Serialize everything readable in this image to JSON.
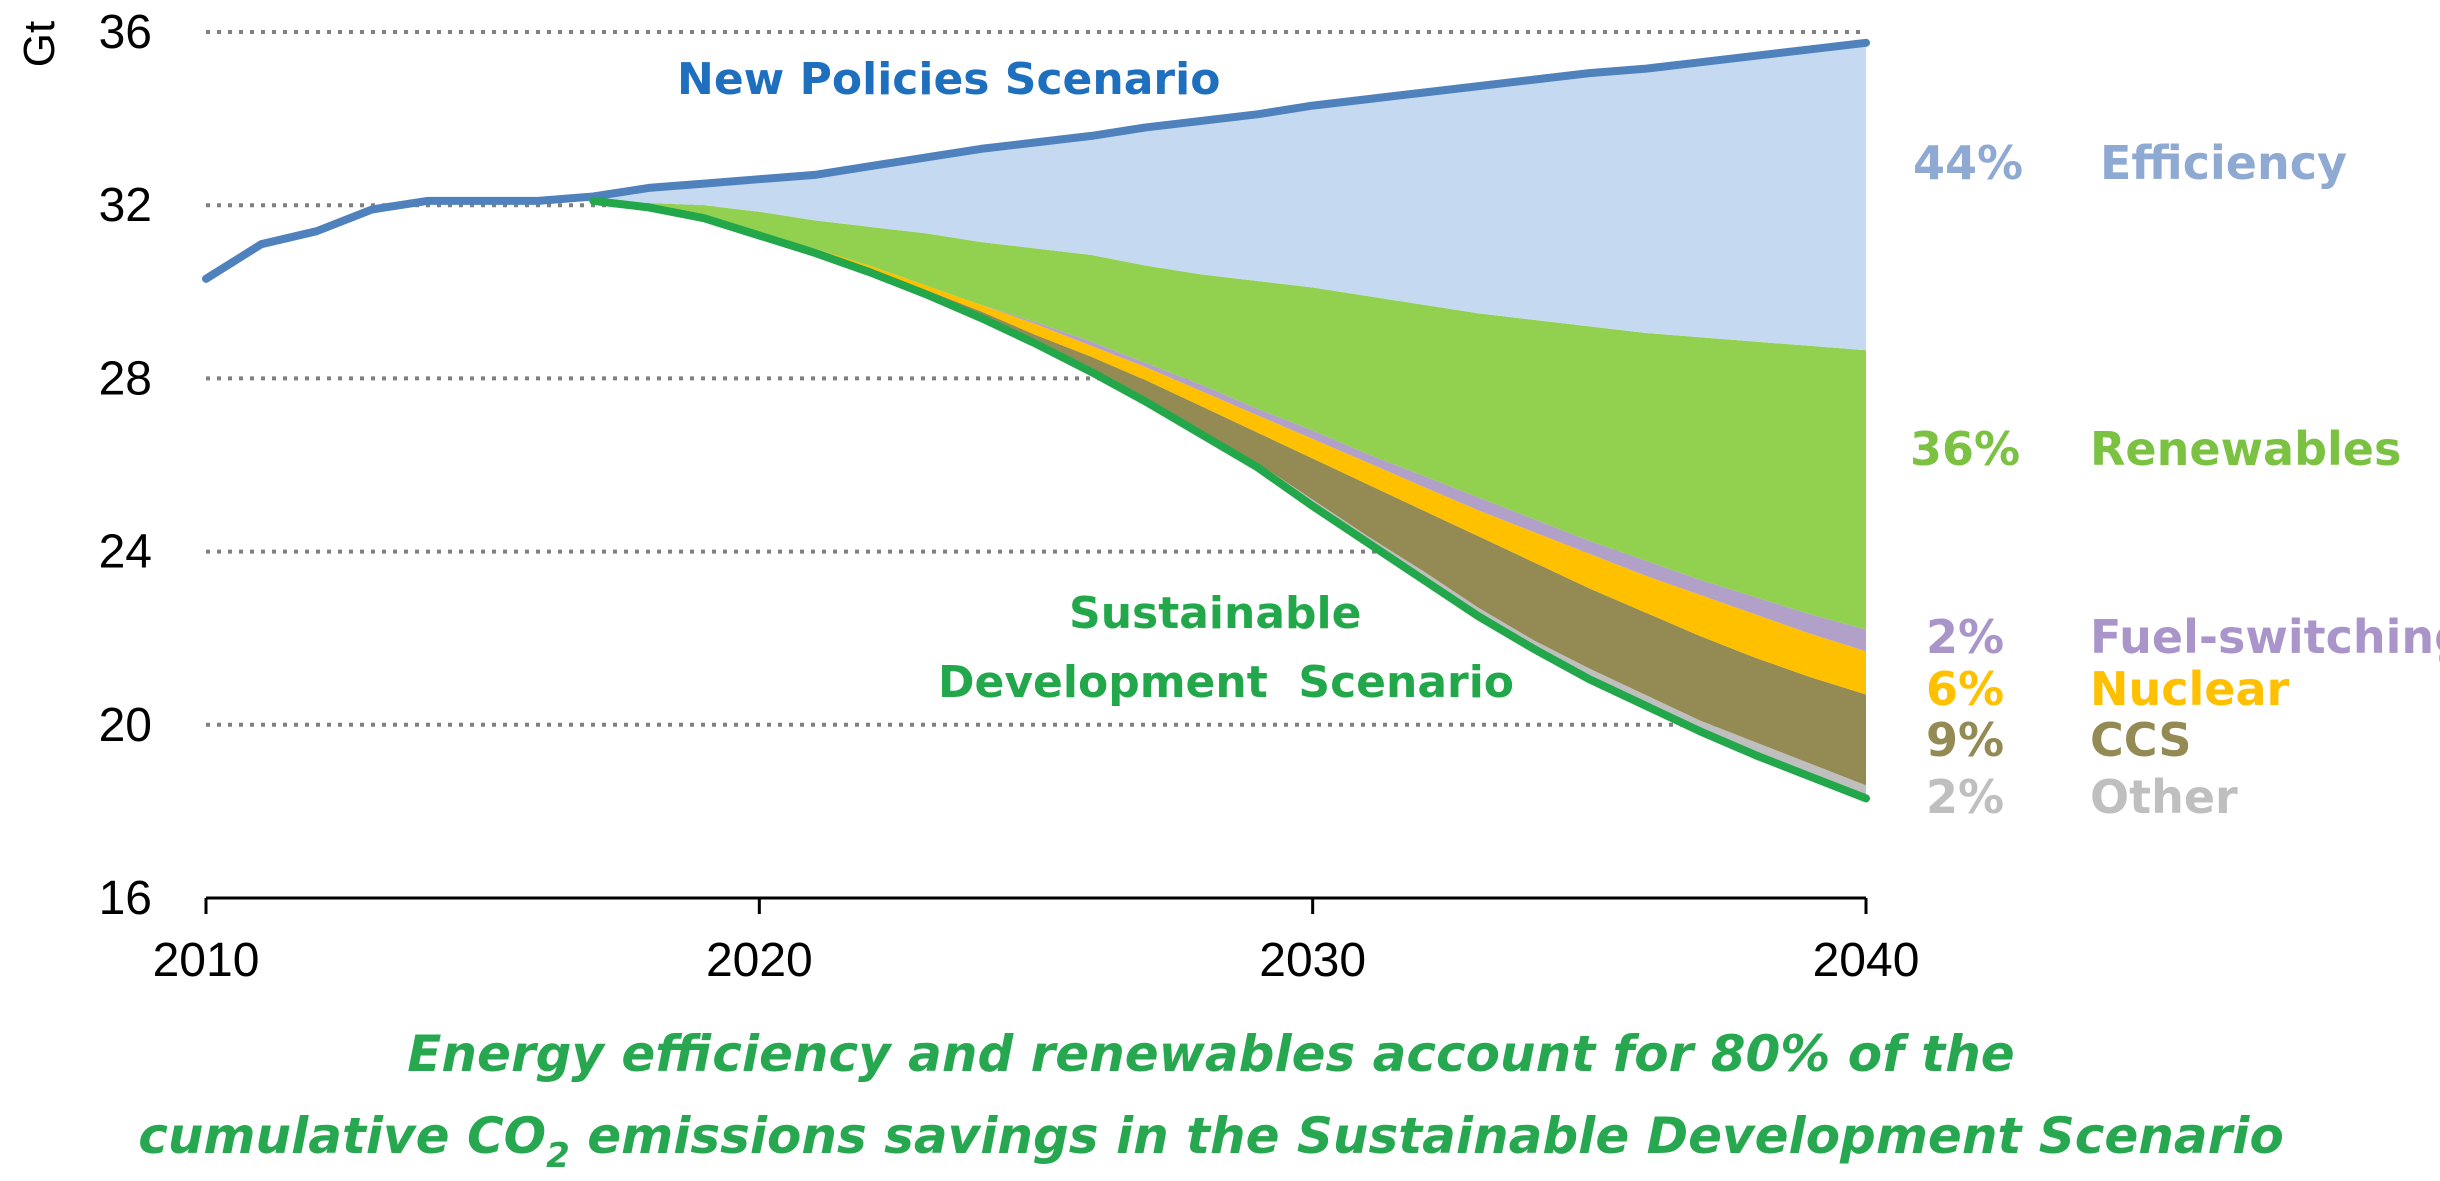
{
  "chart_data": {
    "type": "area",
    "title": "",
    "ylabel": "Gt",
    "xlabel": "",
    "xlim": [
      2010,
      2040
    ],
    "ylim": [
      16,
      36
    ],
    "x_ticks": [
      2010,
      2020,
      2030,
      2040
    ],
    "y_ticks": [
      16,
      20,
      24,
      28,
      32,
      36
    ],
    "gridlines": "horizontal dotted",
    "x": [
      2010,
      2011,
      2012,
      2013,
      2014,
      2015,
      2016,
      2017,
      2018,
      2019,
      2020,
      2021,
      2022,
      2023,
      2024,
      2025,
      2026,
      2027,
      2028,
      2029,
      2030,
      2031,
      2032,
      2033,
      2034,
      2035,
      2036,
      2037,
      2038,
      2039,
      2040
    ],
    "lines": [
      {
        "name": "New Policies Scenario",
        "color": "#4F81BD",
        "values": [
          30.3,
          31.1,
          31.4,
          31.9,
          32.1,
          32.1,
          32.1,
          32.2,
          32.4,
          32.5,
          32.6,
          32.7,
          32.9,
          33.1,
          33.3,
          33.45,
          33.6,
          33.8,
          33.95,
          34.1,
          34.3,
          34.45,
          34.6,
          34.75,
          34.9,
          35.05,
          35.15,
          35.3,
          35.45,
          35.6,
          35.75
        ]
      },
      {
        "name": "Sustainable Development Scenario",
        "color": "#22A84A",
        "values": [
          null,
          null,
          null,
          null,
          null,
          null,
          null,
          32.1,
          31.95,
          31.7,
          31.3,
          30.9,
          30.45,
          29.95,
          29.4,
          28.8,
          28.15,
          27.45,
          26.7,
          25.95,
          25.05,
          24.2,
          23.35,
          22.5,
          21.75,
          21.05,
          20.45,
          19.85,
          19.3,
          18.8,
          18.3
        ]
      }
    ],
    "wedges": [
      {
        "name": "Other",
        "share": "2%",
        "color": "#BFBFBF",
        "top": [
          null,
          null,
          null,
          null,
          null,
          null,
          null,
          32.1,
          31.95,
          31.7,
          31.3,
          30.9,
          30.45,
          29.95,
          29.45,
          28.9,
          28.25,
          27.55,
          26.8,
          26.05,
          25.2,
          24.35,
          23.55,
          22.7,
          21.95,
          21.3,
          20.7,
          20.1,
          19.6,
          19.1,
          18.6
        ]
      },
      {
        "name": "CCS",
        "share": "9%",
        "color": "#948A54",
        "top": [
          null,
          null,
          null,
          null,
          null,
          null,
          null,
          32.1,
          31.95,
          31.7,
          31.35,
          30.95,
          30.5,
          30.05,
          29.55,
          29.0,
          28.5,
          27.95,
          27.35,
          26.75,
          26.15,
          25.55,
          24.95,
          24.35,
          23.75,
          23.15,
          22.6,
          22.05,
          21.55,
          21.1,
          20.7
        ]
      },
      {
        "name": "Nuclear",
        "share": "6%",
        "color": "#FFC000",
        "top": [
          null,
          null,
          null,
          null,
          null,
          null,
          null,
          32.1,
          31.95,
          31.7,
          31.35,
          31.0,
          30.6,
          30.15,
          29.7,
          29.25,
          28.75,
          28.25,
          27.7,
          27.15,
          26.6,
          26.05,
          25.5,
          24.95,
          24.45,
          23.95,
          23.45,
          23.0,
          22.55,
          22.1,
          21.7
        ]
      },
      {
        "name": "Fuel-switching",
        "share": "2%",
        "color": "#B1A0C7",
        "top": [
          null,
          null,
          null,
          null,
          null,
          null,
          null,
          32.1,
          31.95,
          31.7,
          31.35,
          31.0,
          30.6,
          30.15,
          29.7,
          29.3,
          28.85,
          28.35,
          27.85,
          27.3,
          26.8,
          26.25,
          25.75,
          25.25,
          24.75,
          24.25,
          23.8,
          23.35,
          22.95,
          22.55,
          22.2
        ]
      },
      {
        "name": "Renewables",
        "share": "36%",
        "color": "#92D050",
        "top": [
          null,
          null,
          null,
          null,
          null,
          null,
          null,
          32.1,
          32.05,
          32.0,
          31.85,
          31.65,
          31.5,
          31.35,
          31.15,
          31.0,
          30.85,
          30.6,
          30.4,
          30.25,
          30.1,
          29.9,
          29.7,
          29.5,
          29.35,
          29.2,
          29.05,
          28.95,
          28.85,
          28.75,
          28.65
        ]
      },
      {
        "name": "Efficiency",
        "share": "44%",
        "color": "#C5D9F1",
        "top": "New Policies Scenario"
      }
    ],
    "annotations": [
      {
        "text": "New Policies Scenario",
        "color": "#1F6FBF"
      },
      {
        "text_line1": "Sustainable",
        "text_line2": "Development  Scenario",
        "color": "#22A84A"
      }
    ],
    "legend": [
      {
        "share": "44%",
        "name": "Efficiency",
        "color": "#8EAAD2"
      },
      {
        "share": "36%",
        "name": "Renewables",
        "color": "#7CC242"
      },
      {
        "share": "2%",
        "name": "Fuel-switching",
        "color": "#A995C9"
      },
      {
        "share": "6%",
        "name": "Nuclear",
        "color": "#FFC000"
      },
      {
        "share": "9%",
        "name": "CCS",
        "color": "#948A54"
      },
      {
        "share": "2%",
        "name": "Other",
        "color": "#BFBFBF"
      }
    ]
  },
  "caption": {
    "line1": "Energy efficiency and renewables account for 80% of the",
    "line2_pre": "cumulative CO",
    "line2_sub": "2",
    "line2_post": " emissions savings in the Sustainable Development Scenario",
    "color": "#27A850"
  }
}
